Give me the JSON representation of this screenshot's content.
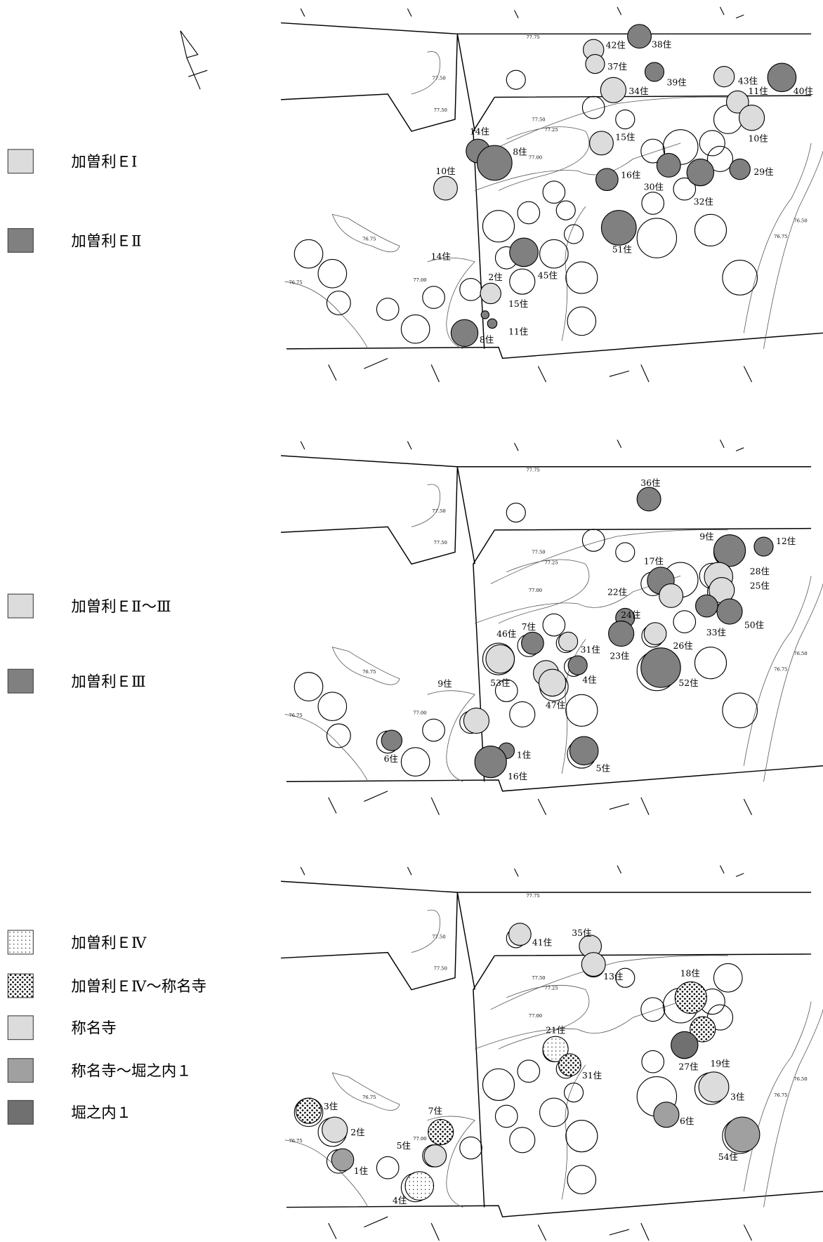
{
  "panels": [
    {
      "legend": [
        {
          "label": "加曽利ＥⅠ"
        },
        {
          "label": "加曽利ＥⅡ"
        }
      ],
      "features": [
        {
          "label": "42住"
        },
        {
          "label": "38住"
        },
        {
          "label": "37住"
        },
        {
          "label": "39住"
        },
        {
          "label": "34住"
        },
        {
          "label": "43住"
        },
        {
          "label": "40住"
        },
        {
          "label": "11住"
        },
        {
          "label": "10住"
        },
        {
          "label": "15住"
        },
        {
          "label": "14住"
        },
        {
          "label": "8住"
        },
        {
          "label": "10住"
        },
        {
          "label": "16住"
        },
        {
          "label": "30住"
        },
        {
          "label": "29住"
        },
        {
          "label": "32住"
        },
        {
          "label": "51住"
        },
        {
          "label": "14住"
        },
        {
          "label": "45住"
        },
        {
          "label": "2住"
        },
        {
          "label": "15住"
        },
        {
          "label": "11住"
        },
        {
          "label": "8住"
        }
      ]
    },
    {
      "legend": [
        {
          "label": "加曽利ＥⅡ～Ⅲ"
        },
        {
          "label": "加曽利ＥⅢ"
        }
      ],
      "features": [
        {
          "label": "36住"
        },
        {
          "label": "9住"
        },
        {
          "label": "12住"
        },
        {
          "label": "17住"
        },
        {
          "label": "28住"
        },
        {
          "label": "25住"
        },
        {
          "label": "22住"
        },
        {
          "label": "24住"
        },
        {
          "label": "26住"
        },
        {
          "label": "33住"
        },
        {
          "label": "50住"
        },
        {
          "label": "7住"
        },
        {
          "label": "46住"
        },
        {
          "label": "31住"
        },
        {
          "label": "4住"
        },
        {
          "label": "23住"
        },
        {
          "label": "52住"
        },
        {
          "label": "53住"
        },
        {
          "label": "47住"
        },
        {
          "label": "9住"
        },
        {
          "label": "6住"
        },
        {
          "label": "1住"
        },
        {
          "label": "16住"
        },
        {
          "label": "5住"
        }
      ]
    },
    {
      "legend": [
        {
          "label": "加曽利ＥⅣ"
        },
        {
          "label": "加曽利ＥⅣ～称名寺"
        },
        {
          "label": "称名寺"
        },
        {
          "label": "称名寺～堀之内１"
        },
        {
          "label": "堀之内１"
        }
      ],
      "features": [
        {
          "label": "41住"
        },
        {
          "label": "35住"
        },
        {
          "label": "13住"
        },
        {
          "label": "18住"
        },
        {
          "label": "21住"
        },
        {
          "label": "31住"
        },
        {
          "label": "19住"
        },
        {
          "label": "27住"
        },
        {
          "label": "3住"
        },
        {
          "label": "6住"
        },
        {
          "label": "54住"
        },
        {
          "label": "3住"
        },
        {
          "label": "2住"
        },
        {
          "label": "7住"
        },
        {
          "label": "5住"
        },
        {
          "label": "1住"
        },
        {
          "label": "4住"
        }
      ]
    }
  ],
  "contour_labels": [
    "77.75",
    "77.50",
    "77.50",
    "77.50",
    "77.25",
    "77.00",
    "76.75",
    "76.75",
    "77.00",
    "76.75",
    "76.50"
  ]
}
